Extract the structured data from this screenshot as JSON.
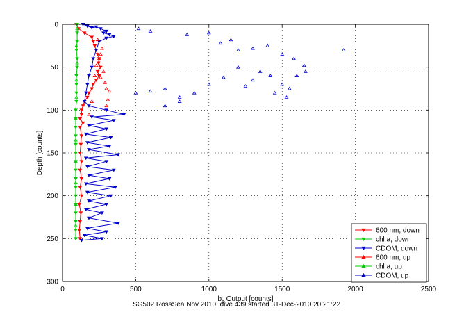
{
  "chart_data": {
    "type": "scatter",
    "caption": "SG502 RossSea Nov 2010, dive 439 started 31-Dec-2010 20:21:22",
    "xlabel_main": "b",
    "xlabel_sub": "b",
    "xlabel_rest": " Output [counts]",
    "ylabel": "Depth [counts]",
    "xlim": [
      0,
      2500
    ],
    "ylim": [
      0,
      300
    ],
    "y_reversed": true,
    "grid": true,
    "xticks": [
      "0",
      "500",
      "1000",
      "1500",
      "2000",
      "2500"
    ],
    "yticks": [
      "0",
      "50",
      "100",
      "150",
      "200",
      "250",
      "300"
    ],
    "legend_position": "bottom-right",
    "series": [
      {
        "name": "600 nm, down",
        "color": "#ff0000",
        "marker": "triangle-down",
        "line": true,
        "points": [
          [
            95,
            0
          ],
          [
            110,
            5
          ],
          [
            150,
            10
          ],
          [
            200,
            15
          ],
          [
            210,
            20
          ],
          [
            220,
            25
          ],
          [
            230,
            30
          ],
          [
            240,
            35
          ],
          [
            250,
            40
          ],
          [
            245,
            45
          ],
          [
            260,
            50
          ],
          [
            240,
            55
          ],
          [
            250,
            60
          ],
          [
            230,
            65
          ],
          [
            210,
            70
          ],
          [
            200,
            75
          ],
          [
            180,
            80
          ],
          [
            170,
            85
          ],
          [
            150,
            90
          ],
          [
            140,
            95
          ],
          [
            130,
            100
          ],
          [
            130,
            105
          ],
          [
            120,
            110
          ],
          [
            140,
            115
          ],
          [
            120,
            120
          ],
          [
            130,
            130
          ],
          [
            125,
            140
          ],
          [
            120,
            150
          ],
          [
            130,
            160
          ],
          [
            120,
            170
          ],
          [
            130,
            180
          ],
          [
            120,
            190
          ],
          [
            130,
            200
          ],
          [
            115,
            210
          ],
          [
            125,
            220
          ],
          [
            120,
            230
          ],
          [
            115,
            240
          ],
          [
            120,
            250
          ]
        ]
      },
      {
        "name": "chl a, down",
        "color": "#00cc00",
        "marker": "triangle-down",
        "line": true,
        "points": [
          [
            100,
            0
          ],
          [
            100,
            10
          ],
          [
            100,
            20
          ],
          [
            95,
            30
          ],
          [
            100,
            40
          ],
          [
            100,
            50
          ],
          [
            95,
            60
          ],
          [
            95,
            70
          ],
          [
            95,
            80
          ],
          [
            95,
            90
          ],
          [
            90,
            100
          ],
          [
            90,
            110
          ],
          [
            90,
            120
          ],
          [
            90,
            130
          ],
          [
            90,
            140
          ],
          [
            90,
            150
          ],
          [
            90,
            160
          ],
          [
            90,
            170
          ],
          [
            90,
            180
          ],
          [
            90,
            190
          ],
          [
            90,
            200
          ],
          [
            90,
            210
          ],
          [
            90,
            220
          ],
          [
            90,
            230
          ],
          [
            90,
            240
          ],
          [
            90,
            250
          ]
        ]
      },
      {
        "name": "CDOM, down",
        "color": "#0000cc",
        "marker": "triangle-down",
        "line": true,
        "points": [
          [
            140,
            0
          ],
          [
            170,
            2
          ],
          [
            200,
            4
          ],
          [
            230,
            3
          ],
          [
            260,
            5
          ],
          [
            300,
            8
          ],
          [
            280,
            10
          ],
          [
            320,
            12
          ],
          [
            350,
            14
          ],
          [
            300,
            16
          ],
          [
            250,
            20
          ],
          [
            230,
            30
          ],
          [
            210,
            40
          ],
          [
            200,
            50
          ],
          [
            180,
            60
          ],
          [
            170,
            70
          ],
          [
            160,
            80
          ],
          [
            150,
            90
          ],
          [
            180,
            95
          ],
          [
            300,
            100
          ],
          [
            420,
            105
          ],
          [
            200,
            108
          ],
          [
            350,
            112
          ],
          [
            180,
            118
          ],
          [
            300,
            122
          ],
          [
            160,
            128
          ],
          [
            330,
            132
          ],
          [
            170,
            138
          ],
          [
            320,
            142
          ],
          [
            180,
            146
          ],
          [
            380,
            152
          ],
          [
            160,
            156
          ],
          [
            300,
            160
          ],
          [
            170,
            166
          ],
          [
            350,
            170
          ],
          [
            180,
            176
          ],
          [
            320,
            180
          ],
          [
            160,
            186
          ],
          [
            360,
            190
          ],
          [
            170,
            196
          ],
          [
            330,
            200
          ],
          [
            180,
            206
          ],
          [
            300,
            210
          ],
          [
            160,
            216
          ],
          [
            270,
            220
          ],
          [
            180,
            226
          ],
          [
            380,
            232
          ],
          [
            170,
            238
          ],
          [
            300,
            242
          ],
          [
            150,
            246
          ],
          [
            270,
            250
          ],
          [
            130,
            252
          ]
        ]
      },
      {
        "name": "600 nm, up",
        "color": "#ff0000",
        "marker": "triangle-up",
        "line": false,
        "points": [
          [
            250,
            40
          ],
          [
            280,
            55
          ],
          [
            300,
            75
          ],
          [
            200,
            90
          ],
          [
            320,
            78
          ],
          [
            260,
            62
          ],
          [
            230,
            48
          ],
          [
            270,
            28
          ],
          [
            240,
            18
          ],
          [
            290,
            68
          ],
          [
            310,
            88
          ],
          [
            180,
            105
          ],
          [
            220,
            60
          ],
          [
            260,
            35
          ],
          [
            300,
            95
          ]
        ]
      },
      {
        "name": "chl a, up",
        "color": "#00cc00",
        "marker": "triangle-up",
        "line": false,
        "points": [
          [
            100,
            5
          ],
          [
            95,
            25
          ],
          [
            100,
            45
          ],
          [
            95,
            65
          ],
          [
            95,
            85
          ],
          [
            90,
            110
          ],
          [
            90,
            135
          ],
          [
            90,
            160
          ],
          [
            90,
            185
          ],
          [
            90,
            210
          ],
          [
            90,
            235
          ]
        ]
      },
      {
        "name": "CDOM, up",
        "color": "#0000cc",
        "marker": "triangle-up",
        "line": false,
        "points": [
          [
            520,
            5
          ],
          [
            600,
            8
          ],
          [
            850,
            12
          ],
          [
            1000,
            10
          ],
          [
            1080,
            22
          ],
          [
            1150,
            18
          ],
          [
            1200,
            30
          ],
          [
            1300,
            28
          ],
          [
            1400,
            25
          ],
          [
            1500,
            35
          ],
          [
            1580,
            40
          ],
          [
            1650,
            48
          ],
          [
            1420,
            60
          ],
          [
            1350,
            55
          ],
          [
            1200,
            50
          ],
          [
            1100,
            62
          ],
          [
            1000,
            70
          ],
          [
            900,
            80
          ],
          [
            800,
            85
          ],
          [
            700,
            75
          ],
          [
            600,
            78
          ],
          [
            500,
            80
          ],
          [
            700,
            95
          ],
          [
            800,
            90
          ],
          [
            1500,
            70
          ],
          [
            1600,
            60
          ],
          [
            1550,
            75
          ],
          [
            1450,
            80
          ],
          [
            1300,
            65
          ],
          [
            1250,
            72
          ],
          [
            1920,
            30
          ],
          [
            1660,
            55
          ],
          [
            1530,
            85
          ]
        ]
      }
    ]
  }
}
